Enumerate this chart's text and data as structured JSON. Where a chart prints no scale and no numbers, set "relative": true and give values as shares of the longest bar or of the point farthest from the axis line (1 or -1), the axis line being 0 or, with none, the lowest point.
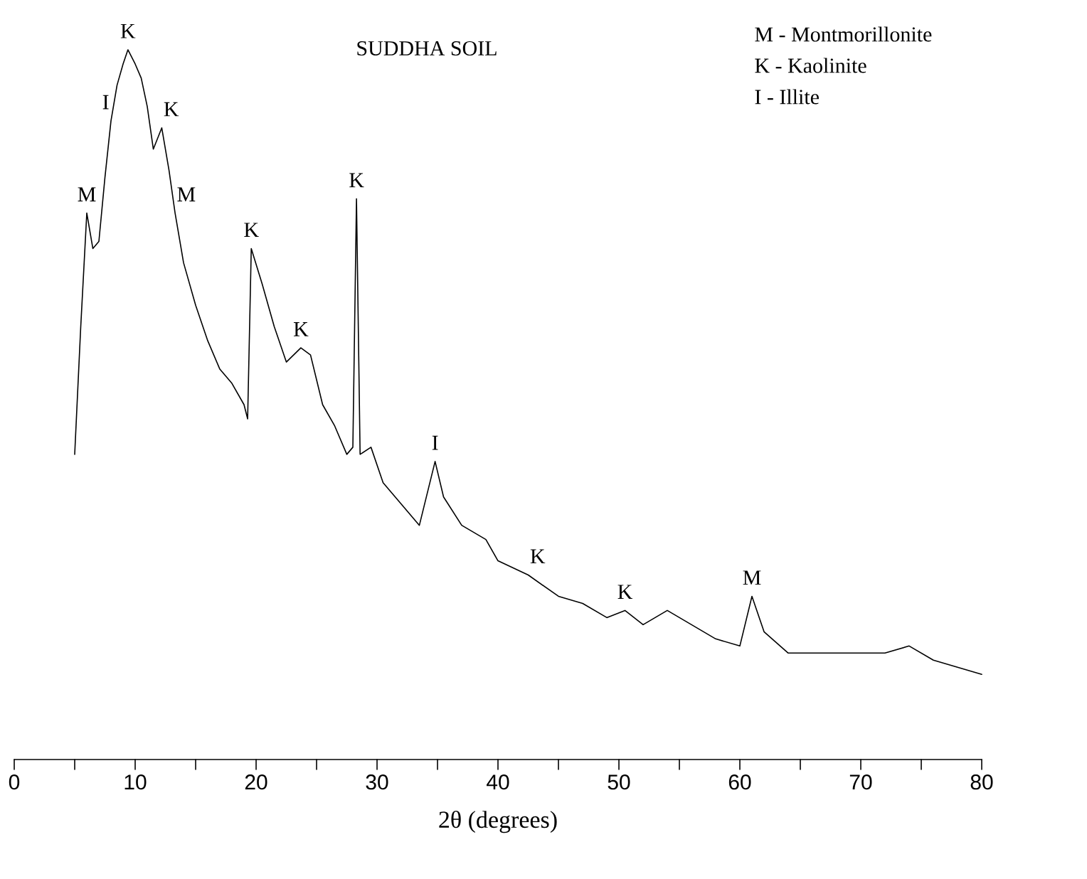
{
  "chart_data": {
    "type": "line",
    "title": "SUDDHA SOIL",
    "xlabel": "2θ (degrees)",
    "relative": true,
    "color": "#000000",
    "xlim": [
      0,
      80
    ],
    "xticks": [
      0,
      {
        "value": 5,
        "label": null
      },
      10,
      {
        "value": 15,
        "label": null
      },
      20,
      {
        "value": 25,
        "label": null
      },
      30,
      {
        "value": 35,
        "label": null
      },
      40,
      {
        "value": 45,
        "label": null
      },
      50,
      {
        "value": 55,
        "label": null
      },
      60,
      {
        "value": 65,
        "label": null
      },
      70,
      {
        "value": 75,
        "label": null
      },
      80
    ],
    "x": [
      5.0,
      5.5,
      6.0,
      6.5,
      7.0,
      7.5,
      8.0,
      8.5,
      9.0,
      9.4,
      10.0,
      10.5,
      11.0,
      11.5,
      12.2,
      12.8,
      13.3,
      14,
      15,
      16,
      17,
      18,
      19,
      19.3,
      19.6,
      20.5,
      21.5,
      22.5,
      23.7,
      24.5,
      25.5,
      26.5,
      27.5,
      28.0,
      28.3,
      28.6,
      29.5,
      30.5,
      32,
      33.5,
      34.8,
      35.5,
      37,
      39,
      40,
      42.5,
      45,
      47,
      49,
      50.5,
      52,
      54,
      56,
      58,
      60,
      61,
      62,
      64,
      66,
      68,
      70,
      72,
      74,
      76,
      78,
      80
    ],
    "values": [
      0.43,
      0.61,
      0.77,
      0.72,
      0.73,
      0.82,
      0.9,
      0.95,
      0.98,
      1.0,
      0.98,
      0.96,
      0.92,
      0.86,
      0.89,
      0.83,
      0.77,
      0.7,
      0.64,
      0.59,
      0.55,
      0.53,
      0.5,
      0.48,
      0.72,
      0.67,
      0.61,
      0.56,
      0.58,
      0.57,
      0.5,
      0.47,
      0.43,
      0.44,
      0.79,
      0.43,
      0.44,
      0.39,
      0.36,
      0.33,
      0.42,
      0.37,
      0.33,
      0.31,
      0.28,
      0.26,
      0.23,
      0.22,
      0.2,
      0.21,
      0.19,
      0.21,
      0.19,
      0.17,
      0.16,
      0.23,
      0.18,
      0.15,
      0.15,
      0.15,
      0.15,
      0.15,
      0.16,
      0.14,
      0.13,
      0.12
    ],
    "annotations": [
      {
        "text": "M",
        "x": 6.0,
        "y": 0.77
      },
      {
        "text": "I",
        "x": 8.0,
        "y": 0.9
      },
      {
        "text": "K",
        "x": 9.4,
        "y": 1.0
      },
      {
        "text": "K",
        "x": 12.2,
        "y": 0.89
      },
      {
        "text": "M",
        "x": 13.3,
        "y": 0.77
      },
      {
        "text": "K",
        "x": 19.6,
        "y": 0.72
      },
      {
        "text": "K",
        "x": 23.7,
        "y": 0.58
      },
      {
        "text": "K",
        "x": 28.3,
        "y": 0.79
      },
      {
        "text": "I",
        "x": 34.8,
        "y": 0.42
      },
      {
        "text": "K",
        "x": 42.5,
        "y": 0.26
      },
      {
        "text": "K",
        "x": 50.5,
        "y": 0.21
      },
      {
        "text": "M",
        "x": 61,
        "y": 0.23
      },
      "M - Montmorillonite",
      "K - Kaolinite",
      "I - Illite"
    ]
  }
}
